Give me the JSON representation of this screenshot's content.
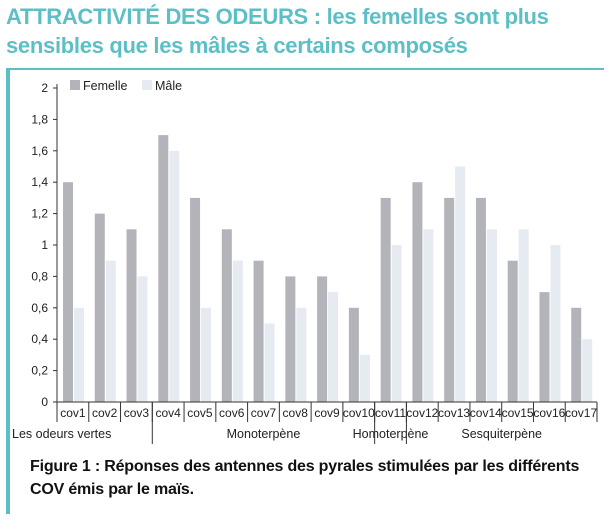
{
  "title": "ATTRACTIVITÉ DES ODEURS : les femelles sont plus sensibles que les mâles à certains composés",
  "caption": "Figure 1 : Réponses des antennes des pyrales stimulées par les différents COV émis par le maïs.",
  "colors": {
    "accent": "#5dbfc6",
    "femelle": "#b3b3ba",
    "male": "#e6eaf1"
  },
  "chart_data": {
    "type": "bar",
    "categories": [
      "cov1",
      "cov2",
      "cov3",
      "cov4",
      "cov5",
      "cov6",
      "cov7",
      "cov8",
      "cov9",
      "cov10",
      "cov11",
      "cov12",
      "cov13",
      "cov14",
      "cov15",
      "cov16",
      "cov17"
    ],
    "series": [
      {
        "name": "Femelle",
        "values": [
          1.4,
          1.2,
          1.1,
          1.7,
          1.3,
          1.1,
          0.9,
          0.8,
          0.8,
          0.6,
          1.3,
          1.4,
          1.3,
          1.3,
          0.9,
          0.7,
          0.6
        ]
      },
      {
        "name": "Mâle",
        "values": [
          0.6,
          0.9,
          0.8,
          1.6,
          0.6,
          0.9,
          0.5,
          0.6,
          0.7,
          0.3,
          1.0,
          1.1,
          1.5,
          1.1,
          1.1,
          1.0,
          0.4
        ]
      }
    ],
    "ylim": [
      0,
      2
    ],
    "yticks": [
      "0",
      "0,2",
      "0,4",
      "0,6",
      "0,8",
      "1",
      "1,2",
      "1,4",
      "1,6",
      "1,8",
      "2"
    ],
    "groups": [
      {
        "label": "Les odeurs vertes",
        "start": 0,
        "end": 2
      },
      {
        "label": "Monoterpène",
        "start": 3,
        "end": 9
      },
      {
        "label": "Homoterpène",
        "start": 10,
        "end": 10
      },
      {
        "label": "Sesquiterpène",
        "start": 11,
        "end": 16
      }
    ],
    "legend_position": "top-left",
    "grid": false
  }
}
